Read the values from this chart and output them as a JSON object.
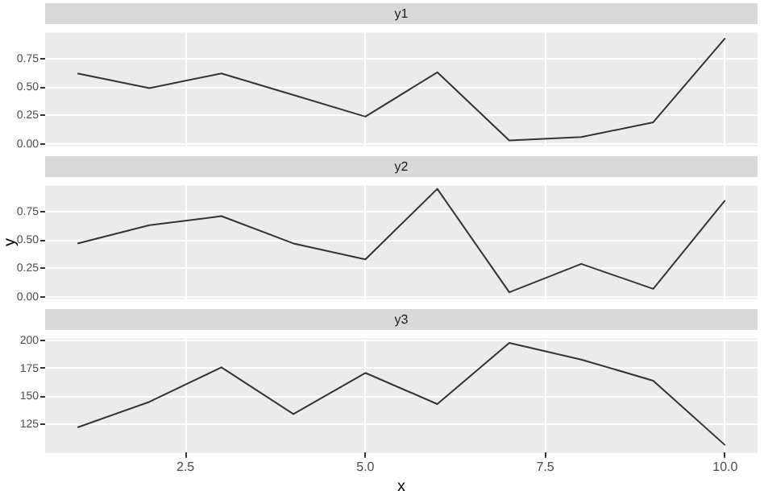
{
  "chart_data": [
    {
      "type": "line",
      "title": "y1",
      "x": [
        1,
        2,
        3,
        4,
        5,
        6,
        7,
        8,
        9,
        10
      ],
      "series": [
        {
          "color": "#333333",
          "values": [
            0.62,
            0.49,
            0.62,
            0.43,
            0.24,
            0.63,
            0.03,
            0.06,
            0.19,
            0.93
          ]
        }
      ],
      "xlim": [
        0.55,
        10.45
      ],
      "xticks": [
        2.5,
        5,
        7.5,
        10
      ],
      "ylim": [
        -0.02,
        0.98
      ],
      "yticks": [
        {
          "value": 0,
          "label": "0.00"
        },
        {
          "value": 0.25,
          "label": "0.25"
        },
        {
          "value": 0.5,
          "label": "0.50"
        },
        {
          "value": 0.75,
          "label": "0.75"
        }
      ],
      "grid": true,
      "tick_labels": "y"
    },
    {
      "type": "line",
      "title": "y2",
      "ylabel": "y",
      "x": [
        1,
        2,
        3,
        4,
        5,
        6,
        7,
        8,
        9,
        10
      ],
      "series": [
        {
          "color": "#333333",
          "values": [
            0.47,
            0.63,
            0.71,
            0.47,
            0.33,
            0.95,
            0.04,
            0.29,
            0.07,
            0.85
          ]
        }
      ],
      "xlim": [
        0.55,
        10.45
      ],
      "xticks": [
        2.5,
        5,
        7.5,
        10
      ],
      "ylim": [
        -0.02,
        0.98
      ],
      "yticks": [
        {
          "value": 0,
          "label": "0.00"
        },
        {
          "value": 0.25,
          "label": "0.25"
        },
        {
          "value": 0.5,
          "label": "0.50"
        },
        {
          "value": 0.75,
          "label": "0.75"
        }
      ],
      "grid": true,
      "tick_labels": "y"
    },
    {
      "type": "line",
      "title": "y3",
      "xlabel": "x",
      "x": [
        1,
        2,
        3,
        4,
        5,
        6,
        7,
        8,
        9,
        10
      ],
      "series": [
        {
          "color": "#333333",
          "values": [
            122,
            145,
            176,
            134,
            171,
            143,
            198,
            183,
            164,
            106
          ]
        }
      ],
      "xlim": [
        0.55,
        10.45
      ],
      "xticks": [
        {
          "value": 2.5,
          "label": "2.5"
        },
        {
          "value": 5,
          "label": "5.0"
        },
        {
          "value": 7.5,
          "label": "7.5"
        },
        {
          "value": 10,
          "label": "10.0"
        }
      ],
      "ylim": [
        99,
        202
      ],
      "yticks": [
        125,
        150,
        175,
        200
      ],
      "grid": true
    }
  ]
}
